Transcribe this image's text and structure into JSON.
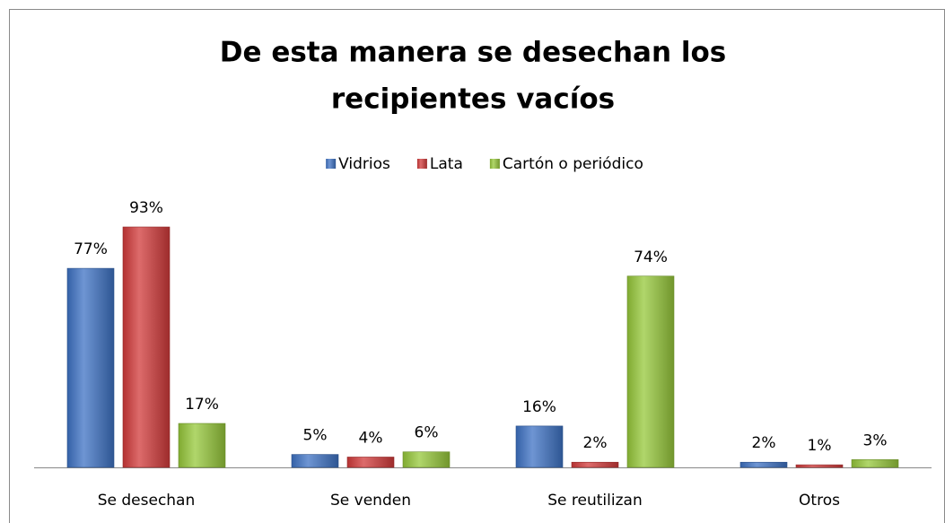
{
  "chart_data": {
    "type": "bar",
    "title": [
      "De esta manera se desechan los",
      "recipientes vacíos"
    ],
    "categories": [
      "Se desechan",
      "Se venden",
      "Se reutilizan",
      "Otros"
    ],
    "legend": "top",
    "series": [
      {
        "name": "Vidrios",
        "color": "#3d72c4",
        "values": [
          77,
          5,
          16,
          2
        ],
        "value_labels": [
          "77%",
          "5%",
          "16%",
          "2%"
        ]
      },
      {
        "name": "Lata",
        "color": "#d23a3a",
        "values": [
          93,
          4,
          2,
          1
        ],
        "value_labels": [
          "93%",
          "4%",
          "2%",
          "1%"
        ]
      },
      {
        "name": "Cartón o periódico",
        "color": "#96c83a",
        "values": [
          17,
          6,
          74,
          3
        ],
        "value_labels": [
          "17%",
          "6%",
          "74%",
          "3%"
        ]
      }
    ]
  }
}
